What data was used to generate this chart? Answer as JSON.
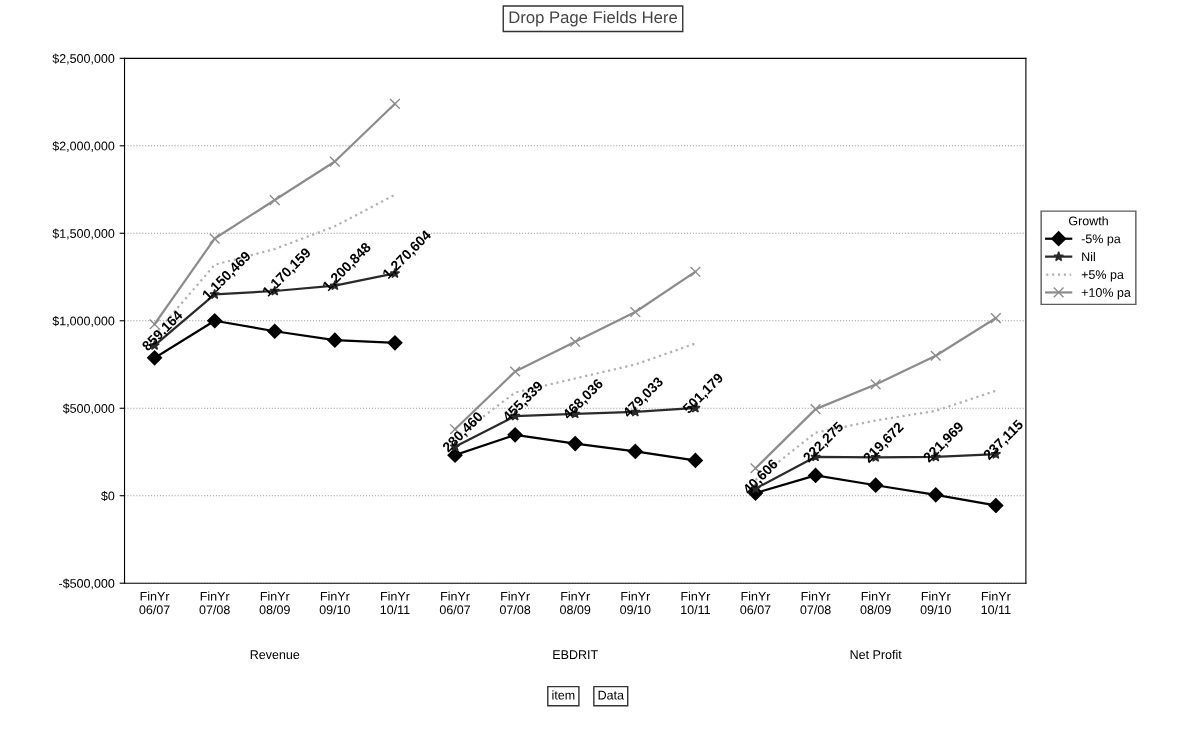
{
  "chart_data": {
    "type": "line",
    "categories": [
      "FinYr\n06/07",
      "FinYr\n07/08",
      "FinYr\n08/09",
      "FinYr\n09/10",
      "FinYr\n10/11",
      "FinYr\n06/07",
      "FinYr\n07/08",
      "FinYr\n08/09",
      "FinYr\n09/10",
      "FinYr\n10/11",
      "FinYr\n06/07",
      "FinYr\n07/08",
      "FinYr\n08/09",
      "FinYr\n09/10",
      "FinYr\n10/11"
    ],
    "series": [
      {
        "name": "-5% pa",
        "color": "#000000",
        "marker": "diamond",
        "line_style": "solid",
        "values": [
          788000,
          1000000,
          940000,
          889000,
          874000,
          232000,
          348000,
          298000,
          253000,
          202000,
          15000,
          116000,
          60000,
          5000,
          -56000
        ]
      },
      {
        "name": "Nil",
        "color": "#2a2a2a",
        "marker": "star",
        "line_style": "solid",
        "values": [
          859164,
          1150469,
          1170159,
          1200848,
          1270604,
          280460,
          455339,
          468036,
          479033,
          501179,
          40606,
          222275,
          219672,
          221969,
          237115
        ],
        "value_labels": [
          "859,164",
          "1,150,469",
          "1,170,159",
          "1,200,848",
          "1,270,604",
          "280,460",
          "455,339",
          "468,036",
          "479,033",
          "501,179",
          "40,606",
          "222,275",
          "219,672",
          "221,969",
          "237,115"
        ]
      },
      {
        "name": "+5% pa",
        "color": "#b0b0b0",
        "marker": "none",
        "line_style": "dotted",
        "values": [
          920000,
          1320000,
          1410000,
          1540000,
          1720000,
          330000,
          590000,
          670000,
          750000,
          870000,
          90000,
          360000,
          430000,
          485000,
          600000
        ]
      },
      {
        "name": "+10% pa",
        "color": "#8c8c8c",
        "marker": "cross",
        "line_style": "solid",
        "values": [
          980000,
          1470000,
          1690000,
          1910000,
          2240000,
          380000,
          710000,
          880000,
          1050000,
          1280000,
          157000,
          495000,
          636000,
          800000,
          1015000
        ]
      }
    ],
    "ylim": [
      -500000,
      2500000
    ],
    "yticks": [
      {
        "value": -500000,
        "label": "-$500,000"
      },
      {
        "value": 0,
        "label": "$0"
      },
      {
        "value": 500000,
        "label": "$500,000"
      },
      {
        "value": 1000000,
        "label": "$1,000,000"
      },
      {
        "value": 1500000,
        "label": "$1,500,000"
      },
      {
        "value": 2000000,
        "label": "$2,000,000"
      },
      {
        "value": 2500000,
        "label": "$2,500,000"
      }
    ],
    "grid": "y",
    "legend": "right",
    "legend_title": "Growth",
    "annotations": [
      "Revenue",
      "EBDRIT",
      "Net Profit",
      "Drop Page Fields Here",
      "item",
      "Data"
    ]
  }
}
